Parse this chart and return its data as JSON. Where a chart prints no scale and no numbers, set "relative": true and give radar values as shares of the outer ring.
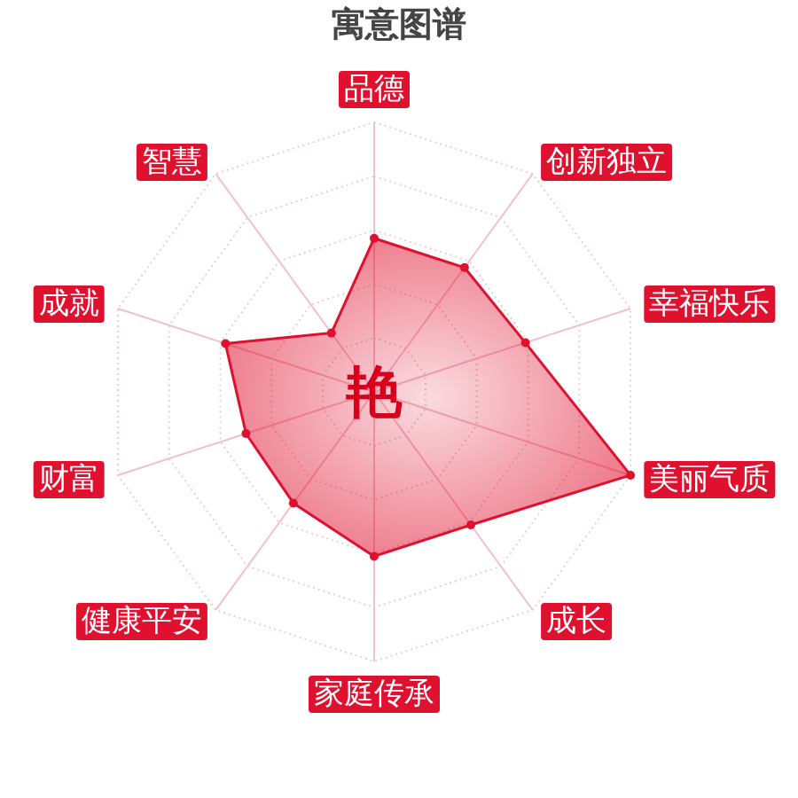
{
  "chart_data": {
    "type": "radar",
    "title": "寓意图谱",
    "categories": [
      "品德",
      "创新独立",
      "幸福快乐",
      "美丽气质",
      "成长",
      "家庭传承",
      "健康平安",
      "财富",
      "成就",
      "智慧"
    ],
    "relative": true,
    "series": [
      {
        "color": "#e0102f",
        "values": [
          0.57,
          0.57,
          0.59,
          1,
          0.61,
          0.61,
          0.51,
          0.5,
          0.58,
          0.27
        ]
      }
    ],
    "annotations": [
      "艳"
    ],
    "grid": true,
    "marker": "circle"
  }
}
